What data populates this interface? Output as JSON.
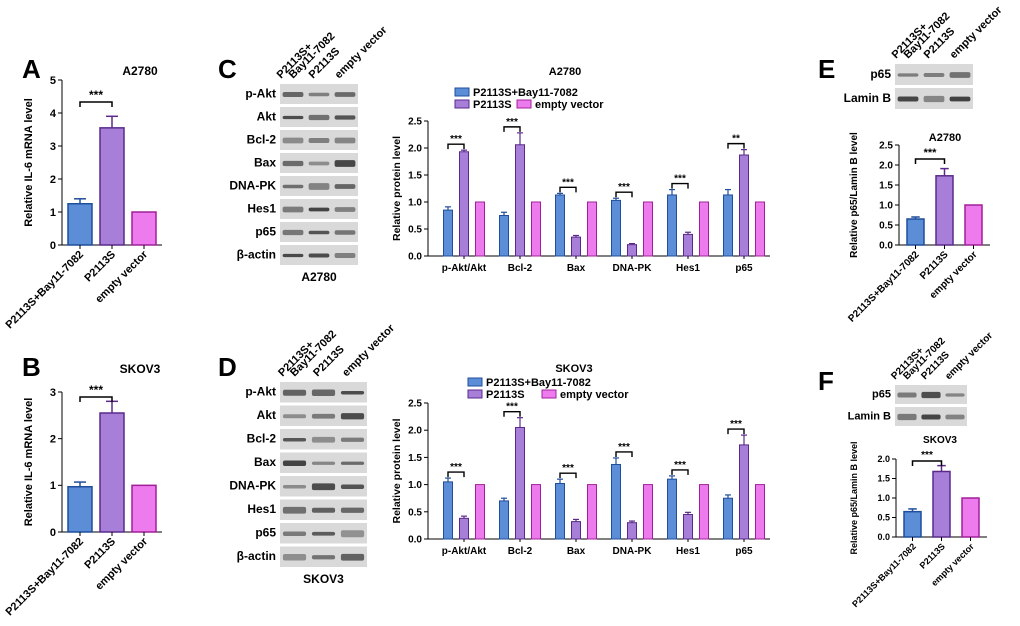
{
  "panel_labels": {
    "A": "A",
    "B": "B",
    "C": "C",
    "D": "D",
    "E": "E",
    "F": "F"
  },
  "colors": {
    "combo": "#5b8ed6",
    "p2113s": "#a77fd9",
    "empty": "#ee7bee",
    "combo_edge": "#1f4e9c",
    "p2113s_edge": "#5a2a8a",
    "empty_edge": "#a0209a"
  },
  "sig": {
    "three": "***",
    "two": "**"
  },
  "blot_c": {
    "lanes": [
      "P2113S+\nBay11-7082",
      "P2113S",
      "empty vector"
    ],
    "rows": [
      "p-Akt",
      "Akt",
      "Bcl-2",
      "Bax",
      "DNA-PK",
      "Hes1",
      "p65",
      "β-actin"
    ],
    "cell_line": "A2780"
  },
  "blot_d": {
    "lanes": [
      "P2113S+\nBay11-7082",
      "P2113S",
      "empty vector"
    ],
    "rows": [
      "p-Akt",
      "Akt",
      "Bcl-2",
      "Bax",
      "DNA-PK",
      "Hes1",
      "p65",
      "β-actin"
    ],
    "cell_line": "SKOV3"
  },
  "blot_e": {
    "lanes": [
      "P2113S+\nBay11-7082",
      "P2113S",
      "empty vector"
    ],
    "rows": [
      "p65",
      "Lamin B"
    ]
  },
  "blot_f": {
    "lanes": [
      "P2113S+\nBay11-7082",
      "P2113S",
      "empty vector"
    ],
    "rows": [
      "p65",
      "Lamin B"
    ]
  },
  "chart_data": [
    {
      "id": "A",
      "type": "bar",
      "title": "A2780",
      "ylabel": "Relative IL-6 mRNA level",
      "categories": [
        "P2113S+Bay11-7082",
        "P2113S",
        "empty vector"
      ],
      "values": [
        1.25,
        3.55,
        1.0
      ],
      "errors": [
        0.15,
        0.35,
        0
      ],
      "ylim": [
        0,
        5
      ],
      "yticks": [
        0,
        1,
        2,
        3,
        4,
        5
      ],
      "sig": "***"
    },
    {
      "id": "B",
      "type": "bar",
      "title": "SKOV3",
      "ylabel": "Relative IL-6 mRNA level",
      "categories": [
        "P2113S+Bay11-7082",
        "P2113S",
        "empty vector"
      ],
      "values": [
        0.97,
        2.55,
        1.0
      ],
      "errors": [
        0.1,
        0.25,
        0
      ],
      "ylim": [
        0,
        3
      ],
      "yticks": [
        0,
        1,
        2,
        3
      ],
      "sig": "***"
    },
    {
      "id": "C",
      "type": "bar",
      "title": "A2780",
      "ylabel": "Relative protein level",
      "categories": [
        "p-Akt/Akt",
        "Bcl-2",
        "Bax",
        "DNA-PK",
        "Hes1",
        "p65"
      ],
      "series": [
        {
          "name": "P2113S+Bay11-7082",
          "values": [
            0.85,
            0.75,
            1.13,
            1.03,
            1.13,
            1.13
          ],
          "errors": [
            0.06,
            0.06,
            0.03,
            0.04,
            0.1,
            0.1
          ]
        },
        {
          "name": "P2113S",
          "values": [
            1.93,
            2.06,
            0.35,
            0.21,
            0.4,
            1.87
          ],
          "errors": [
            0.03,
            0.22,
            0.03,
            0.02,
            0.04,
            0.1
          ]
        },
        {
          "name": "empty vector",
          "values": [
            1,
            1,
            1,
            1,
            1,
            1
          ],
          "errors": [
            0,
            0,
            0,
            0,
            0,
            0
          ]
        }
      ],
      "sig": [
        "***",
        "***",
        "***",
        "***",
        "***",
        "**"
      ],
      "ylim": [
        0,
        2.5
      ],
      "yticks": [
        0,
        0.5,
        1.0,
        1.5,
        2.0,
        2.5
      ],
      "yticklabels": [
        "0.0",
        "0.5",
        "1.0",
        "1.5",
        "2.0",
        "2.5"
      ]
    },
    {
      "id": "D",
      "type": "bar",
      "title": "SKOV3",
      "ylabel": "Relative protein level",
      "categories": [
        "p-Akt/Akt",
        "Bcl-2",
        "Bax",
        "DNA-PK",
        "Hes1",
        "p65"
      ],
      "series": [
        {
          "name": "P2113S+Bay11-7082",
          "values": [
            1.05,
            0.7,
            1.02,
            1.37,
            1.1,
            0.75
          ],
          "errors": [
            0.07,
            0.05,
            0.08,
            0.12,
            0.06,
            0.06
          ]
        },
        {
          "name": "P2113S",
          "values": [
            0.38,
            2.05,
            0.32,
            0.3,
            0.45,
            1.73
          ],
          "errors": [
            0.04,
            0.18,
            0.04,
            0.03,
            0.04,
            0.18
          ]
        },
        {
          "name": "empty vector",
          "values": [
            1,
            1,
            1,
            1,
            1,
            1
          ],
          "errors": [
            0,
            0,
            0,
            0,
            0,
            0
          ]
        }
      ],
      "sig": [
        "***",
        "***",
        "***",
        "***",
        "***",
        "***"
      ],
      "ylim": [
        0,
        2.5
      ],
      "yticks": [
        0,
        0.5,
        1.0,
        1.5,
        2.0,
        2.5
      ],
      "yticklabels": [
        "0.0",
        "0.5",
        "1.0",
        "1.5",
        "2.0",
        "2.5"
      ]
    },
    {
      "id": "E",
      "type": "bar",
      "title": "A2780",
      "ylabel": "Relative p65/Lamin B level",
      "categories": [
        "P2113S+Bay11-7082",
        "P2113S",
        "empty vector"
      ],
      "values": [
        0.65,
        1.73,
        1.0
      ],
      "errors": [
        0.05,
        0.18,
        0
      ],
      "ylim": [
        0,
        2.5
      ],
      "yticks": [
        0,
        0.5,
        1.0,
        1.5,
        2.0,
        2.5
      ],
      "yticklabels": [
        "0.0",
        "0.5",
        "1.0",
        "1.5",
        "2.0",
        "2.5"
      ],
      "sig": "***"
    },
    {
      "id": "F",
      "type": "bar",
      "title": "SKOV3",
      "ylabel": "Relative p65/Lamin B level",
      "categories": [
        "P2113S+Bay11-7082",
        "P2113S",
        "empty vector"
      ],
      "values": [
        0.65,
        1.68,
        1.0
      ],
      "errors": [
        0.07,
        0.15,
        0
      ],
      "ylim": [
        0,
        2
      ],
      "yticks": [
        0,
        0.5,
        1.0,
        1.5,
        2.0
      ],
      "yticklabels": [
        "0.0",
        "0.5",
        "1.0",
        "1.5",
        "2.0"
      ],
      "sig": "***"
    }
  ]
}
